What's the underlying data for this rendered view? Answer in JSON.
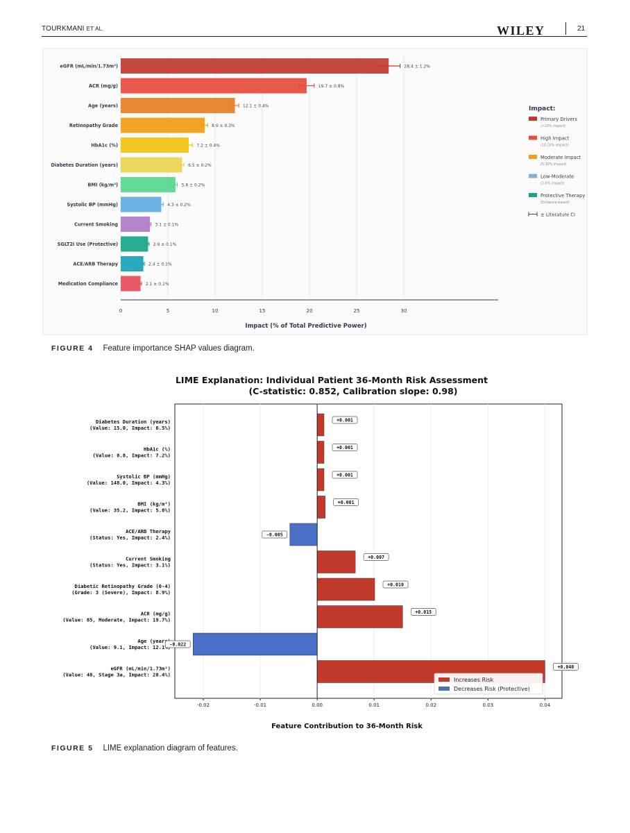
{
  "header": {
    "author": "TOURKMANI",
    "et_al": "ET AL.",
    "publisher": "WILEY",
    "page_number": "21"
  },
  "figure4": {
    "caption_label": "FIGURE 4",
    "caption_text": "Feature importance SHAP values diagram.",
    "chart_data": {
      "type": "bar",
      "orientation": "horizontal",
      "categories": [
        "eGFR (mL/min/1.73m²)",
        "ACR (mg/g)",
        "Age (years)",
        "Retinopathy Grade",
        "HbA1c (%)",
        "Diabetes Duration (years)",
        "BMI (kg/m²)",
        "Systolic BP (mmHg)",
        "Current Smoking",
        "SGLT2i Use (Protective)",
        "ACE/ARB Therapy",
        "Medication Compliance"
      ],
      "values": [
        28.4,
        19.7,
        12.1,
        8.9,
        7.2,
        6.5,
        5.8,
        4.3,
        3.1,
        2.9,
        2.4,
        2.1
      ],
      "errors": [
        1.2,
        0.8,
        0.4,
        0.3,
        0.4,
        0.2,
        0.2,
        0.2,
        0.1,
        0.1,
        0.1,
        0.1
      ],
      "value_labels": [
        "28.4 ± 1.2%",
        "19.7 ± 0.8%",
        "12.1 ± 0.4%",
        "8.9 ± 0.3%",
        "7.2 ± 0.4%",
        "6.5 ± 0.2%",
        "5.8 ± 0.2%",
        "4.3 ± 0.2%",
        "3.1 ± 0.1%",
        "2.9 ± 0.1%",
        "2.4 ± 0.1%",
        "2.1 ± 0.1%"
      ],
      "colors": [
        "#c0392b",
        "#e74c3c",
        "#e67e22",
        "#f39c12",
        "#f1c40f",
        "#e8d44d",
        "#58d68d",
        "#5dade2",
        "#af7ac5",
        "#17a589",
        "#17a2b8",
        "#e74c5c"
      ],
      "xlabel": "Impact (% of Total Predictive Power)",
      "xlim": [
        0,
        40
      ],
      "xticks": [
        0,
        5,
        10,
        15,
        20,
        25,
        30
      ],
      "grid": true,
      "legend": {
        "placement": "right",
        "title": "Impact:",
        "entries": [
          {
            "label": "Primary Drivers",
            "sub": "(>20% impact)",
            "color": "#c0392b"
          },
          {
            "label": "High Impact",
            "sub": "(10-20% impact)",
            "color": "#e74c3c"
          },
          {
            "label": "Moderate Impact",
            "sub": "(5-10% impact)",
            "color": "#f39c12"
          },
          {
            "label": "Low-Moderate",
            "sub": "(2-5% impact)",
            "color": "#7fb3d5"
          },
          {
            "label": "Protective Therapy",
            "sub": "(Evidence-based)",
            "color": "#17a589"
          },
          {
            "label": "± Literature CI",
            "sub": "",
            "color": "#34495e"
          }
        ]
      }
    }
  },
  "figure5": {
    "caption_label": "FIGURE 5",
    "caption_text": "LIME explanation diagram of features.",
    "chart_data": {
      "type": "bar",
      "orientation": "horizontal",
      "title": "LIME Explanation: Individual Patient 36-Month Risk Assessment",
      "subtitle": "(C-statistic: 0.852, Calibration slope: 0.98)",
      "categories": [
        {
          "name": "Diabetes Duration (years)",
          "detail": "(Value: 15.0, Impact: 6.5%)"
        },
        {
          "name": "HbA1c (%)",
          "detail": "(Value: 8.8, Impact: 7.2%)"
        },
        {
          "name": "Systolic BP (mmHg)",
          "detail": "(Value: 148.0, Impact: 4.3%)"
        },
        {
          "name": "BMI (kg/m²)",
          "detail": "(Value: 35.2, Impact: 5.8%)"
        },
        {
          "name": "ACE/ARB Therapy",
          "detail": "(Status: Yes, Impact: 2.4%)"
        },
        {
          "name": "Current Smoking",
          "detail": "(Status: Yes, Impact: 3.1%)"
        },
        {
          "name": "Diabetic Retinopathy Grade (0-4)",
          "detail": "(Grade: 3 (Severe), Impact: 8.9%)"
        },
        {
          "name": "ACR (mg/g)",
          "detail": "(Value: 85, Moderate, Impact: 19.7%)"
        },
        {
          "name": "Age (years)",
          "detail": "(Value: 9.1, Impact: 12.1%)"
        },
        {
          "name": "eGFR (mL/min/1.73m²)",
          "detail": "(Value: 48, Stage 3a, Impact: 28.4%)"
        }
      ],
      "values": [
        0.0012,
        0.0012,
        0.0012,
        0.0014,
        -0.0048,
        0.0067,
        0.0101,
        0.015,
        -0.0218,
        0.04
      ],
      "value_labels": [
        "+0.001",
        "+0.001",
        "+0.001",
        "+0.001",
        "-0.005",
        "+0.007",
        "+0.010",
        "+0.015",
        "-0.022",
        "+0.040"
      ],
      "xlabel": "Feature Contribution to 36-Month Risk",
      "xlim": [
        -0.025,
        0.043
      ],
      "xticks": [
        "-0.02",
        "-0.01",
        "0.00",
        "0.01",
        "0.02",
        "0.03",
        "0.04"
      ],
      "grid": true,
      "colors": {
        "increases": "#c0392b",
        "decreases": "#4a6fc7"
      },
      "legend": {
        "placement": "bottom-right",
        "entries": [
          {
            "label": "Increases Risk",
            "color": "#c0392b"
          },
          {
            "label": "Decreases  Risk (Protective)",
            "color": "#4a6fc7"
          }
        ]
      }
    }
  }
}
